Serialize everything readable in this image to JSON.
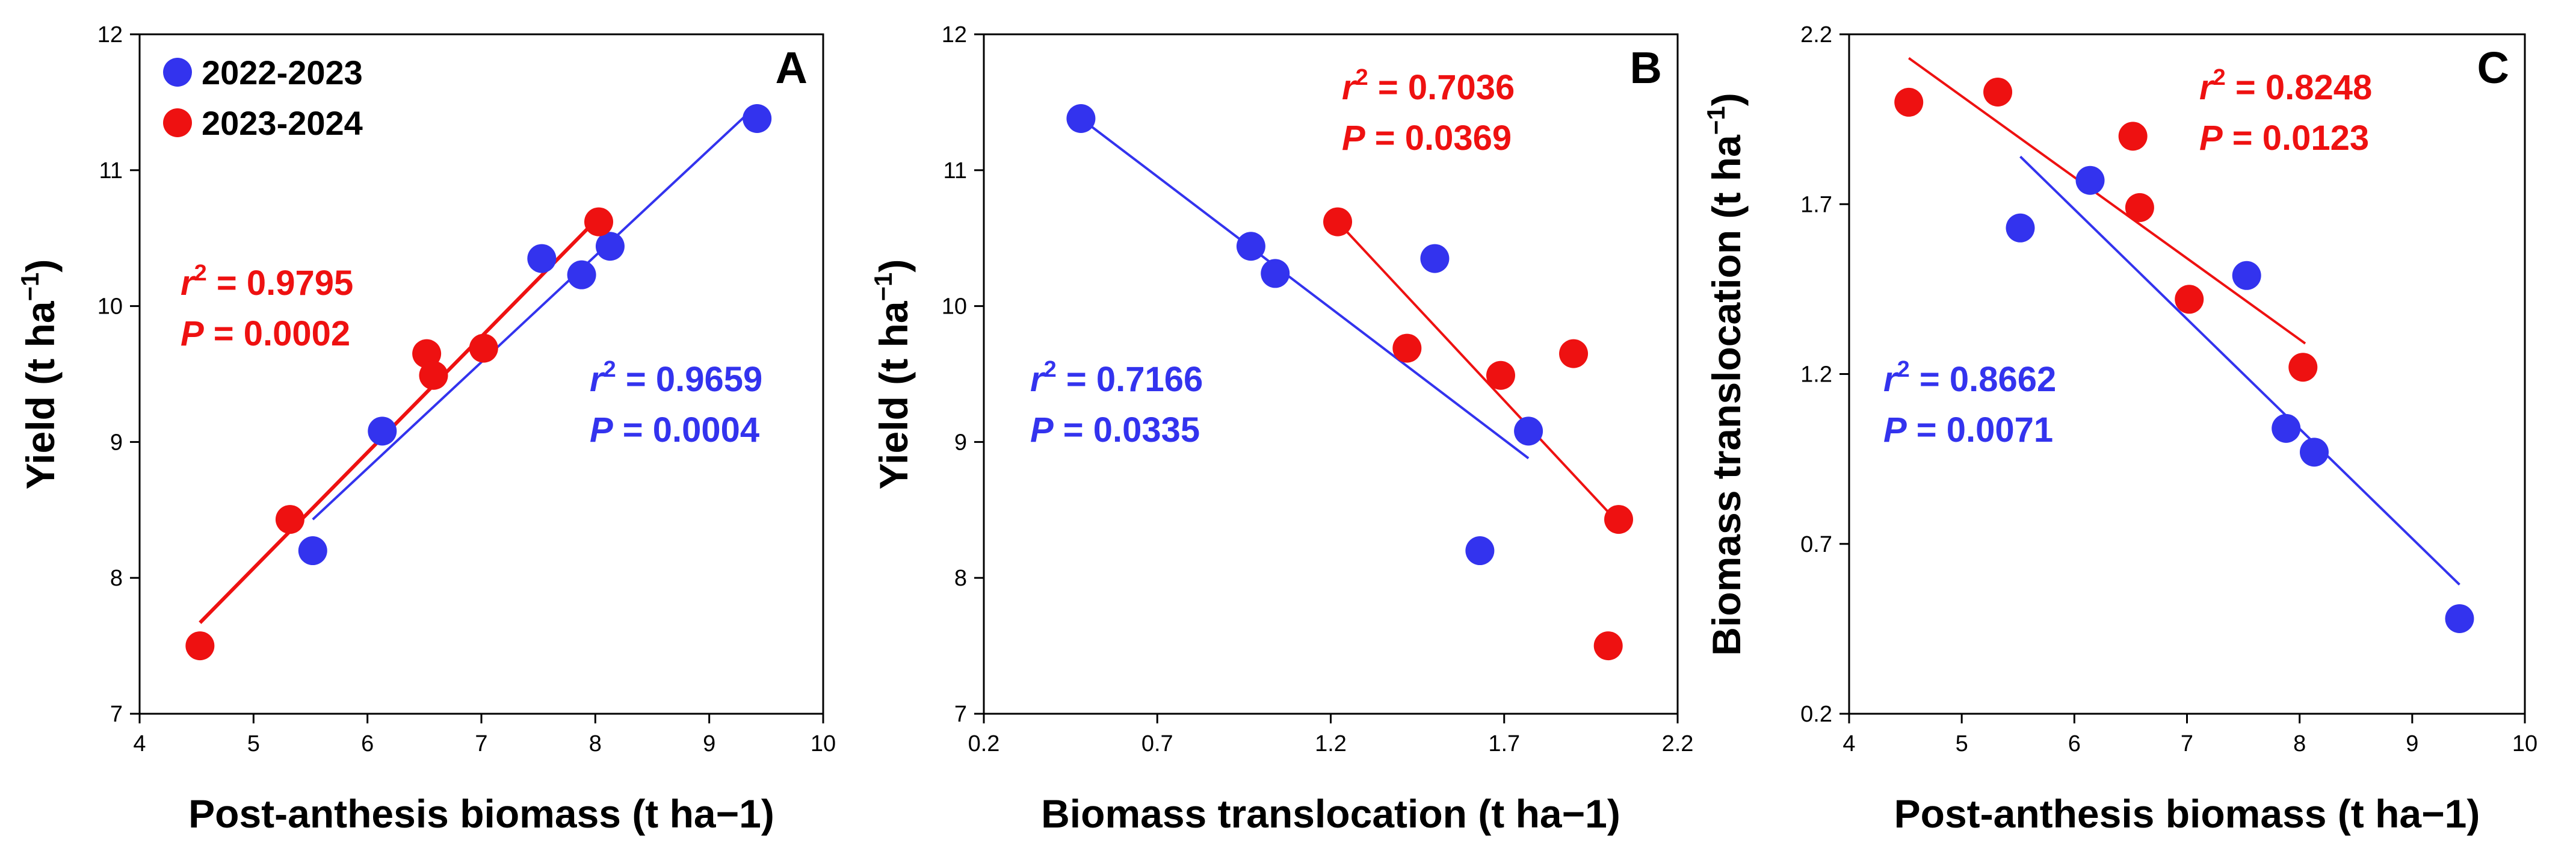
{
  "colors": {
    "series1": "#3333ee",
    "series2": "#ee1111",
    "axis": "#000000",
    "plot_bg": "#ffffff"
  },
  "legend": [
    {
      "name": "2022-2023",
      "color": "#3333ee"
    },
    {
      "name": "2023-2024",
      "color": "#ee1111"
    }
  ],
  "chart_data": [
    {
      "type": "scatter",
      "panel": "A",
      "xlabel": "Post-anthesis biomass (t ha−1)",
      "ylabel": {
        "main": "Yield (t ha",
        "sup": "−1",
        "close": ")"
      },
      "xlim": [
        4,
        10
      ],
      "ylim": [
        7,
        12
      ],
      "xticks": [
        4,
        5,
        6,
        7,
        8,
        9,
        10
      ],
      "yticks": [
        7,
        8,
        9,
        10,
        11,
        12
      ],
      "xtick_labels": [
        "4",
        "5",
        "6",
        "7",
        "8",
        "9",
        "10"
      ],
      "ytick_labels": [
        "7",
        "8",
        "9",
        "10",
        "11",
        "12"
      ],
      "legend_position": "top-left",
      "series": [
        {
          "name": "2022-2023",
          "color": "#3333ee",
          "points": [
            [
              5.52,
              8.2
            ],
            [
              6.13,
              9.08
            ],
            [
              7.53,
              10.35
            ],
            [
              7.88,
              10.23
            ],
            [
              8.13,
              10.44
            ],
            [
              9.42,
              11.38
            ]
          ],
          "fit": {
            "x": [
              5.52,
              9.42
            ],
            "y": [
              8.43,
              11.48
            ]
          },
          "stats": {
            "r2_label": "r",
            "r2_sup": "2",
            "r2_value": " = 0.9659",
            "p_label": "P",
            "p_value": " = 0.0004"
          }
        },
        {
          "name": "2023-2024",
          "color": "#ee1111",
          "points": [
            [
              4.53,
              7.5
            ],
            [
              5.32,
              8.43
            ],
            [
              6.52,
              9.65
            ],
            [
              6.58,
              9.49
            ],
            [
              7.02,
              9.69
            ],
            [
              8.03,
              10.62
            ]
          ],
          "fit": {
            "x": [
              4.53,
              8.05
            ],
            "y": [
              7.67,
              10.67
            ]
          },
          "stats": {
            "r2_label": "r",
            "r2_sup": "2",
            "r2_value": " = 0.9795",
            "p_label": "P",
            "p_value": " = 0.0002"
          }
        }
      ]
    },
    {
      "type": "scatter",
      "panel": "B",
      "xlabel": "Biomass translocation (t ha−1)",
      "ylabel": {
        "main": "Yield (t ha",
        "sup": "−1",
        "close": ")"
      },
      "xlim": [
        0.2,
        2.2
      ],
      "ylim": [
        7,
        12
      ],
      "xticks": [
        0.2,
        0.7,
        1.2,
        1.7,
        2.2
      ],
      "yticks": [
        7,
        8,
        9,
        10,
        11,
        12
      ],
      "xtick_labels": [
        "0.2",
        "0.7",
        "1.2",
        "1.7",
        "2.2"
      ],
      "ytick_labels": [
        "7",
        "8",
        "9",
        "10",
        "11",
        "12"
      ],
      "series": [
        {
          "name": "2022-2023",
          "color": "#3333ee",
          "points": [
            [
              0.48,
              11.38
            ],
            [
              0.97,
              10.44
            ],
            [
              1.04,
              10.24
            ],
            [
              1.5,
              10.35
            ],
            [
              1.63,
              8.2
            ],
            [
              1.77,
              9.08
            ]
          ],
          "fit": {
            "x": [
              0.48,
              1.77
            ],
            "y": [
              11.38,
              8.88
            ]
          },
          "stats": {
            "r2_label": "r",
            "r2_sup": "2",
            "r2_value": " = 0.7166",
            "p_label": "P",
            "p_value": " = 0.0335"
          }
        },
        {
          "name": "2023-2024",
          "color": "#ee1111",
          "points": [
            [
              1.22,
              10.62
            ],
            [
              1.42,
              9.69
            ],
            [
              1.69,
              9.49
            ],
            [
              1.9,
              9.65
            ],
            [
              2.0,
              7.5
            ],
            [
              2.03,
              8.43
            ]
          ],
          "fit": {
            "x": [
              1.22,
              2.02
            ],
            "y": [
              10.62,
              8.43
            ]
          },
          "stats": {
            "r2_label": "r",
            "r2_sup": "2",
            "r2_value": " = 0.7036",
            "p_label": "P",
            "p_value": " = 0.0369"
          }
        }
      ]
    },
    {
      "type": "scatter",
      "panel": "C",
      "xlabel": "Post-anthesis biomass (t ha−1)",
      "ylabel": {
        "main": "Biomass translocation (t ha",
        "sup": "−1",
        "close": ")"
      },
      "xlim": [
        4,
        10
      ],
      "ylim": [
        0.2,
        2.2
      ],
      "xticks": [
        4,
        5,
        6,
        7,
        8,
        9,
        10
      ],
      "yticks": [
        0.2,
        0.7,
        1.2,
        1.7,
        2.2
      ],
      "xtick_labels": [
        "4",
        "5",
        "6",
        "7",
        "8",
        "9",
        "10"
      ],
      "ytick_labels": [
        "0.2",
        "0.7",
        "1.2",
        "1.7",
        "2.2"
      ],
      "series": [
        {
          "name": "2022-2023",
          "color": "#3333ee",
          "points": [
            [
              5.52,
              1.63
            ],
            [
              6.14,
              1.77
            ],
            [
              7.53,
              1.49
            ],
            [
              7.88,
              1.04
            ],
            [
              8.13,
              0.97
            ],
            [
              9.42,
              0.48
            ]
          ],
          "fit": {
            "x": [
              5.52,
              9.42
            ],
            "y": [
              1.84,
              0.58
            ]
          },
          "stats": {
            "r2_label": "r",
            "r2_sup": "2",
            "r2_value": " = 0.8662",
            "p_label": "P",
            "p_value": " = 0.0071"
          }
        },
        {
          "name": "2023-2024",
          "color": "#ee1111",
          "points": [
            [
              4.53,
              2.0
            ],
            [
              5.32,
              2.03
            ],
            [
              6.52,
              1.9
            ],
            [
              6.58,
              1.69
            ],
            [
              7.02,
              1.42
            ],
            [
              8.03,
              1.22
            ]
          ],
          "fit": {
            "x": [
              4.53,
              8.05
            ],
            "y": [
              2.13,
              1.29
            ]
          },
          "stats": {
            "r2_label": "r",
            "r2_sup": "2",
            "r2_value": " = 0.8248",
            "p_label": "P",
            "p_value": " = 0.0123"
          }
        }
      ]
    }
  ]
}
